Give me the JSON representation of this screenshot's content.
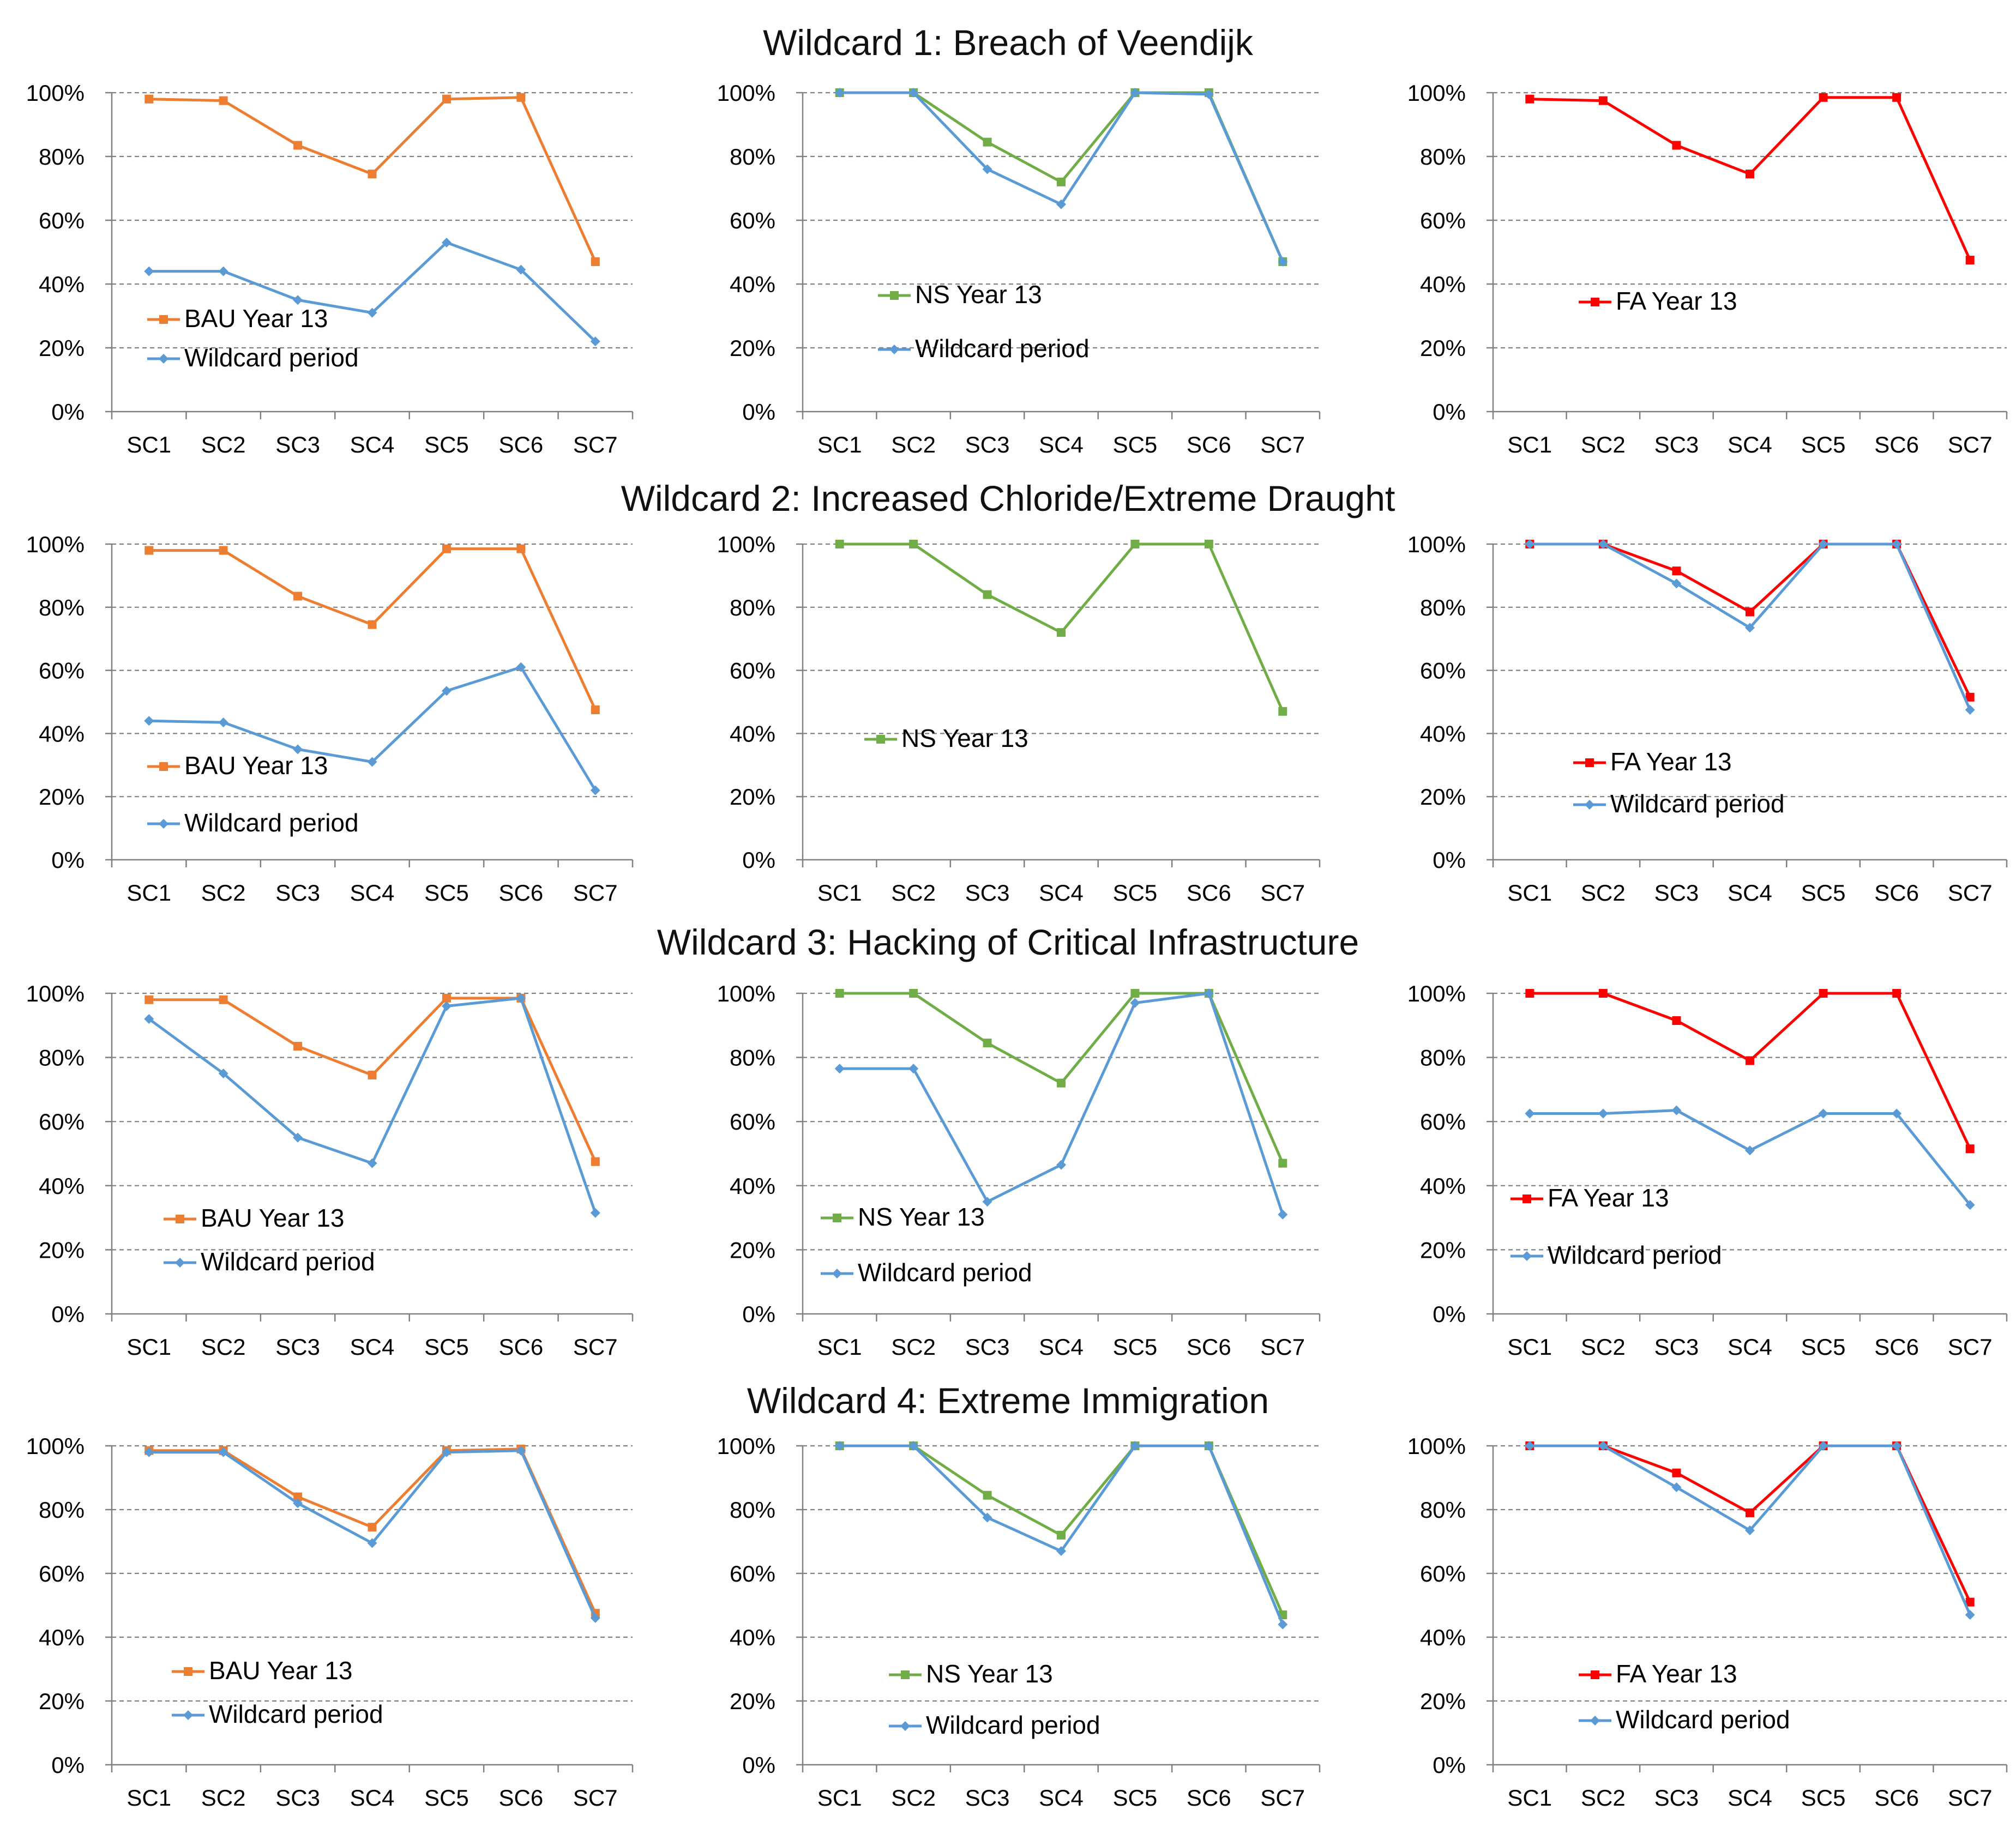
{
  "figure": {
    "wildcard_titles": [
      "Wildcard 1: Breach of Veendijk",
      "Wildcard 2: Increased Chloride/Extreme Draught",
      "Wildcard 3: Hacking of Critical Infrastructure",
      "Wildcard 4: Extreme Immigration"
    ]
  },
  "colors": {
    "bau": "#ED7D31",
    "ns": "#70AD47",
    "fa": "#FF0000",
    "wildcard": "#5B9BD5",
    "grid": "#808080",
    "axis": "#808080"
  },
  "chart_data": [
    {
      "type": "line",
      "wildcard": 1,
      "panel": "BAU",
      "categories": [
        "SC1",
        "SC2",
        "SC3",
        "SC4",
        "SC5",
        "SC6",
        "SC7"
      ],
      "ylim": [
        0,
        100
      ],
      "yticks": [
        "0%",
        "20%",
        "40%",
        "60%",
        "80%",
        "100%"
      ],
      "series": [
        {
          "name": "BAU Year 13",
          "color": "#ED7D31",
          "marker": "square",
          "values": [
            98,
            97.5,
            83.5,
            74.5,
            98,
            98.5,
            47
          ]
        },
        {
          "name": "Wildcard period",
          "color": "#5B9BD5",
          "marker": "diamond",
          "values": [
            44,
            44,
            35,
            31,
            53,
            44.5,
            22
          ]
        }
      ]
    },
    {
      "type": "line",
      "wildcard": 1,
      "panel": "NS",
      "categories": [
        "SC1",
        "SC2",
        "SC3",
        "SC4",
        "SC5",
        "SC6",
        "SC7"
      ],
      "ylim": [
        0,
        100
      ],
      "yticks": [
        "0%",
        "20%",
        "40%",
        "60%",
        "80%",
        "100%"
      ],
      "series": [
        {
          "name": "NS Year 13",
          "color": "#70AD47",
          "marker": "square",
          "values": [
            100,
            100,
            84.5,
            72,
            100,
            100,
            47
          ]
        },
        {
          "name": "Wildcard period",
          "color": "#5B9BD5",
          "marker": "diamond",
          "values": [
            100,
            100,
            76,
            65,
            100,
            99.5,
            47
          ]
        }
      ]
    },
    {
      "type": "line",
      "wildcard": 1,
      "panel": "FA",
      "categories": [
        "SC1",
        "SC2",
        "SC3",
        "SC4",
        "SC5",
        "SC6",
        "SC7"
      ],
      "ylim": [
        0,
        100
      ],
      "yticks": [
        "0%",
        "20%",
        "40%",
        "60%",
        "80%",
        "100%"
      ],
      "series": [
        {
          "name": "FA Year 13",
          "color": "#FF0000",
          "marker": "square",
          "values": [
            98,
            97.5,
            83.5,
            74.5,
            98.5,
            98.5,
            47.5
          ]
        }
      ]
    },
    {
      "type": "line",
      "wildcard": 2,
      "panel": "BAU",
      "categories": [
        "SC1",
        "SC2",
        "SC3",
        "SC4",
        "SC5",
        "SC6",
        "SC7"
      ],
      "ylim": [
        0,
        100
      ],
      "yticks": [
        "0%",
        "20%",
        "40%",
        "60%",
        "80%",
        "100%"
      ],
      "series": [
        {
          "name": "BAU Year 13",
          "color": "#ED7D31",
          "marker": "square",
          "values": [
            98,
            98,
            83.5,
            74.5,
            98.5,
            98.5,
            47.5
          ]
        },
        {
          "name": "Wildcard period",
          "color": "#5B9BD5",
          "marker": "diamond",
          "values": [
            44,
            43.5,
            35,
            31,
            53.5,
            61,
            22
          ]
        }
      ]
    },
    {
      "type": "line",
      "wildcard": 2,
      "panel": "NS",
      "categories": [
        "SC1",
        "SC2",
        "SC3",
        "SC4",
        "SC5",
        "SC6",
        "SC7"
      ],
      "ylim": [
        0,
        100
      ],
      "yticks": [
        "0%",
        "20%",
        "40%",
        "60%",
        "80%",
        "100%"
      ],
      "series": [
        {
          "name": "NS Year 13",
          "color": "#70AD47",
          "marker": "square",
          "values": [
            100,
            100,
            84,
            72,
            100,
            100,
            47
          ]
        }
      ]
    },
    {
      "type": "line",
      "wildcard": 2,
      "panel": "FA",
      "categories": [
        "SC1",
        "SC2",
        "SC3",
        "SC4",
        "SC5",
        "SC6",
        "SC7"
      ],
      "ylim": [
        0,
        100
      ],
      "yticks": [
        "0%",
        "20%",
        "40%",
        "60%",
        "80%",
        "100%"
      ],
      "series": [
        {
          "name": "FA Year 13",
          "color": "#FF0000",
          "marker": "square",
          "values": [
            100,
            100,
            91.5,
            78.5,
            100,
            100,
            51.5
          ]
        },
        {
          "name": "Wildcard period",
          "color": "#5B9BD5",
          "marker": "diamond",
          "values": [
            100,
            100,
            87.5,
            73.5,
            100,
            100,
            47.5
          ]
        }
      ]
    },
    {
      "type": "line",
      "wildcard": 3,
      "panel": "BAU",
      "categories": [
        "SC1",
        "SC2",
        "SC3",
        "SC4",
        "SC5",
        "SC6",
        "SC7"
      ],
      "ylim": [
        0,
        100
      ],
      "yticks": [
        "0%",
        "20%",
        "40%",
        "60%",
        "80%",
        "100%"
      ],
      "series": [
        {
          "name": "BAU Year 13",
          "color": "#ED7D31",
          "marker": "square",
          "values": [
            98,
            98,
            83.5,
            74.5,
            98.5,
            98.5,
            47.5
          ]
        },
        {
          "name": "Wildcard period",
          "color": "#5B9BD5",
          "marker": "diamond",
          "values": [
            92,
            75,
            55,
            47,
            96,
            98.5,
            31.5
          ]
        }
      ]
    },
    {
      "type": "line",
      "wildcard": 3,
      "panel": "NS",
      "categories": [
        "SC1",
        "SC2",
        "SC3",
        "SC4",
        "SC5",
        "SC6",
        "SC7"
      ],
      "ylim": [
        0,
        100
      ],
      "yticks": [
        "0%",
        "20%",
        "40%",
        "60%",
        "80%",
        "100%"
      ],
      "series": [
        {
          "name": "NS Year 13",
          "color": "#70AD47",
          "marker": "square",
          "values": [
            100,
            100,
            84.5,
            72,
            100,
            100,
            47
          ]
        },
        {
          "name": "Wildcard period",
          "color": "#5B9BD5",
          "marker": "diamond",
          "values": [
            76.5,
            76.5,
            35,
            46.5,
            97,
            100,
            31
          ]
        }
      ]
    },
    {
      "type": "line",
      "wildcard": 3,
      "panel": "FA",
      "categories": [
        "SC1",
        "SC2",
        "SC3",
        "SC4",
        "SC5",
        "SC6",
        "SC7"
      ],
      "ylim": [
        0,
        100
      ],
      "yticks": [
        "0%",
        "20%",
        "40%",
        "60%",
        "80%",
        "100%"
      ],
      "series": [
        {
          "name": "FA Year 13",
          "color": "#FF0000",
          "marker": "square",
          "values": [
            100,
            100,
            91.5,
            79,
            100,
            100,
            51.5
          ]
        },
        {
          "name": "Wildcard period",
          "color": "#5B9BD5",
          "marker": "diamond",
          "values": [
            62.5,
            62.5,
            63.5,
            51,
            62.5,
            62.5,
            34
          ]
        }
      ]
    },
    {
      "type": "line",
      "wildcard": 4,
      "panel": "BAU",
      "categories": [
        "SC1",
        "SC2",
        "SC3",
        "SC4",
        "SC5",
        "SC6",
        "SC7"
      ],
      "ylim": [
        0,
        100
      ],
      "yticks": [
        "0%",
        "20%",
        "40%",
        "60%",
        "80%",
        "100%"
      ],
      "series": [
        {
          "name": "BAU Year 13",
          "color": "#ED7D31",
          "marker": "square",
          "values": [
            98.5,
            98.5,
            84,
            74.5,
            98.5,
            99,
            47.5
          ]
        },
        {
          "name": "Wildcard period",
          "color": "#5B9BD5",
          "marker": "diamond",
          "values": [
            98,
            98,
            82,
            69.5,
            98,
            98.5,
            46
          ]
        }
      ]
    },
    {
      "type": "line",
      "wildcard": 4,
      "panel": "NS",
      "categories": [
        "SC1",
        "SC2",
        "SC3",
        "SC4",
        "SC5",
        "SC6",
        "SC7"
      ],
      "ylim": [
        0,
        100
      ],
      "yticks": [
        "0%",
        "20%",
        "40%",
        "60%",
        "80%",
        "100%"
      ],
      "series": [
        {
          "name": "NS Year 13",
          "color": "#70AD47",
          "marker": "square",
          "values": [
            100,
            100,
            84.5,
            72,
            100,
            100,
            47
          ]
        },
        {
          "name": "Wildcard period",
          "color": "#5B9BD5",
          "marker": "diamond",
          "values": [
            100,
            100,
            77.5,
            67,
            100,
            100,
            44
          ]
        }
      ]
    },
    {
      "type": "line",
      "wildcard": 4,
      "panel": "FA",
      "categories": [
        "SC1",
        "SC2",
        "SC3",
        "SC4",
        "SC5",
        "SC6",
        "SC7"
      ],
      "ylim": [
        0,
        100
      ],
      "yticks": [
        "0%",
        "20%",
        "40%",
        "60%",
        "80%",
        "100%"
      ],
      "series": [
        {
          "name": "FA Year 13",
          "color": "#FF0000",
          "marker": "square",
          "values": [
            100,
            100,
            91.5,
            79,
            100,
            100,
            51
          ]
        },
        {
          "name": "Wildcard period",
          "color": "#5B9BD5",
          "marker": "diamond",
          "values": [
            100,
            100,
            87,
            73.5,
            100,
            100,
            47
          ]
        }
      ]
    }
  ]
}
